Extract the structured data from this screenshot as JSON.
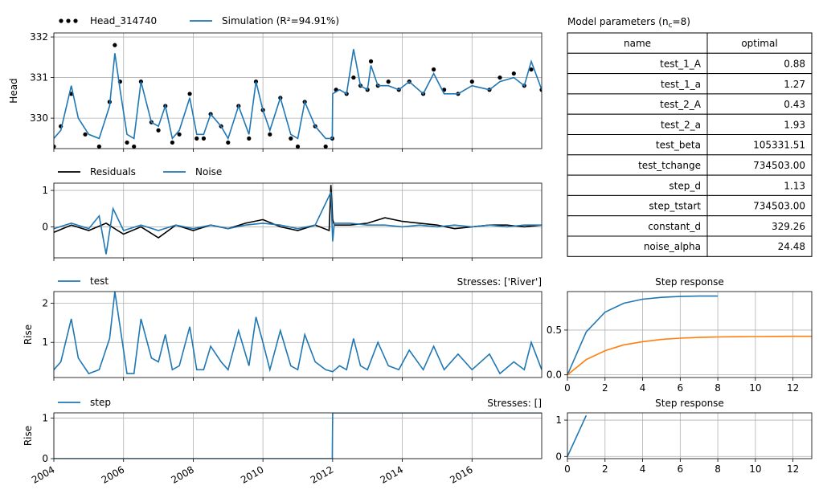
{
  "colors": {
    "blue": "#1f77b4",
    "orange": "#ff7f0e",
    "black": "#000000",
    "grid": "#b0b0b0"
  },
  "x_ticks": [
    "2004",
    "2006",
    "2008",
    "2010",
    "2012",
    "2014",
    "2016"
  ],
  "chart_data": [
    {
      "id": "fit",
      "type": "line",
      "ylabel": "Head",
      "xlim": [
        2004.0,
        2018.0
      ],
      "ylim": [
        329.25,
        332.1
      ],
      "yticks": [
        330,
        331,
        332
      ],
      "grid": true,
      "legend": [
        "Head_314740",
        "Simulation (R²=94.91%)"
      ],
      "legend_placement": "above, left",
      "series": [
        {
          "name": "Head_314740",
          "style": "dots",
          "color": "#000000",
          "x": [
            2004.0,
            2004.2,
            2004.5,
            2004.9,
            2005.3,
            2005.6,
            2005.75,
            2005.9,
            2006.1,
            2006.3,
            2006.5,
            2006.8,
            2007.0,
            2007.2,
            2007.4,
            2007.6,
            2007.9,
            2008.1,
            2008.3,
            2008.5,
            2008.8,
            2009.0,
            2009.3,
            2009.6,
            2009.8,
            2010.0,
            2010.2,
            2010.5,
            2010.8,
            2011.0,
            2011.2,
            2011.5,
            2011.8,
            2011.99,
            2012.1,
            2012.4,
            2012.6,
            2012.8,
            2013.0,
            2013.1,
            2013.3,
            2013.6,
            2013.9,
            2014.2,
            2014.6,
            2014.9,
            2015.2,
            2015.6,
            2016.0,
            2016.5,
            2016.8,
            2017.2,
            2017.5,
            2017.7,
            2018.0
          ],
          "y": [
            329.3,
            329.8,
            330.6,
            329.6,
            329.3,
            330.4,
            331.8,
            330.9,
            329.4,
            329.3,
            330.9,
            329.9,
            329.7,
            330.3,
            329.4,
            329.6,
            330.6,
            329.5,
            329.5,
            330.1,
            329.8,
            329.4,
            330.3,
            329.5,
            330.9,
            330.2,
            329.6,
            330.5,
            329.5,
            329.3,
            330.4,
            329.8,
            329.3,
            329.5,
            330.7,
            330.6,
            331.0,
            330.8,
            330.7,
            331.4,
            330.8,
            330.9,
            330.7,
            330.9,
            330.6,
            331.2,
            330.7,
            330.6,
            330.9,
            330.7,
            331.0,
            331.1,
            330.8,
            331.2,
            330.7
          ]
        },
        {
          "name": "Simulation (R²=94.91%)",
          "style": "line",
          "color": "#1f77b4",
          "x": [
            2004.0,
            2004.2,
            2004.5,
            2004.7,
            2005.0,
            2005.3,
            2005.6,
            2005.75,
            2005.9,
            2006.1,
            2006.3,
            2006.5,
            2006.8,
            2007.0,
            2007.2,
            2007.4,
            2007.6,
            2007.9,
            2008.1,
            2008.3,
            2008.5,
            2008.8,
            2009.0,
            2009.3,
            2009.6,
            2009.8,
            2010.0,
            2010.2,
            2010.5,
            2010.8,
            2011.0,
            2011.2,
            2011.5,
            2011.8,
            2011.99,
            2012.0,
            2012.2,
            2012.4,
            2012.6,
            2012.8,
            2013.0,
            2013.1,
            2013.3,
            2013.6,
            2013.9,
            2014.2,
            2014.6,
            2014.9,
            2015.2,
            2015.6,
            2016.0,
            2016.5,
            2016.8,
            2017.2,
            2017.5,
            2017.7,
            2018.0
          ],
          "y": [
            329.5,
            329.7,
            330.8,
            330.0,
            329.6,
            329.5,
            330.3,
            331.6,
            330.7,
            329.6,
            329.5,
            330.9,
            329.9,
            329.8,
            330.3,
            329.5,
            329.7,
            330.5,
            329.6,
            329.6,
            330.1,
            329.8,
            329.5,
            330.3,
            329.6,
            330.9,
            330.2,
            329.7,
            330.5,
            329.6,
            329.5,
            330.4,
            329.8,
            329.5,
            329.5,
            330.6,
            330.7,
            330.6,
            331.7,
            330.8,
            330.7,
            331.3,
            330.8,
            330.8,
            330.7,
            330.9,
            330.6,
            331.1,
            330.6,
            330.6,
            330.8,
            330.7,
            330.9,
            331.0,
            330.8,
            331.4,
            330.7
          ]
        }
      ]
    },
    {
      "id": "residuals",
      "type": "line",
      "xlim": [
        2004.0,
        2018.0
      ],
      "ylim": [
        -0.85,
        1.2
      ],
      "yticks": [
        0,
        1
      ],
      "grid": true,
      "legend": [
        "Residuals",
        "Noise"
      ],
      "legend_placement": "above, left",
      "series": [
        {
          "name": "Residuals",
          "color": "#000000",
          "x": [
            2004.0,
            2004.5,
            2005.0,
            2005.5,
            2006.0,
            2006.5,
            2007.0,
            2007.5,
            2008.0,
            2008.5,
            2009.0,
            2009.5,
            2010.0,
            2010.5,
            2011.0,
            2011.5,
            2011.9,
            2011.95,
            2012.0,
            2012.05,
            2012.5,
            2013.0,
            2013.5,
            2014.0,
            2014.5,
            2015.0,
            2015.5,
            2016.0,
            2016.5,
            2017.0,
            2017.5,
            2018.0
          ],
          "y": [
            -0.15,
            0.05,
            -0.1,
            0.1,
            -0.2,
            0.0,
            -0.3,
            0.05,
            -0.1,
            0.05,
            -0.05,
            0.1,
            0.2,
            0.0,
            -0.1,
            0.05,
            -0.1,
            1.15,
            0.2,
            0.05,
            0.05,
            0.1,
            0.25,
            0.15,
            0.1,
            0.05,
            -0.05,
            0.0,
            0.05,
            0.05,
            0.0,
            0.05
          ]
        },
        {
          "name": "Noise",
          "color": "#1f77b4",
          "x": [
            2004.0,
            2004.5,
            2005.0,
            2005.3,
            2005.5,
            2005.7,
            2006.0,
            2006.5,
            2007.0,
            2007.5,
            2008.0,
            2008.5,
            2009.0,
            2009.5,
            2010.0,
            2010.5,
            2011.0,
            2011.5,
            2011.95,
            2012.0,
            2012.05,
            2012.5,
            2013.0,
            2013.5,
            2014.0,
            2014.5,
            2015.0,
            2015.5,
            2016.0,
            2016.5,
            2017.0,
            2017.5,
            2018.0
          ],
          "y": [
            -0.05,
            0.1,
            -0.05,
            0.3,
            -0.75,
            0.5,
            -0.1,
            0.05,
            -0.1,
            0.05,
            -0.05,
            0.05,
            -0.05,
            0.05,
            0.1,
            0.05,
            -0.05,
            0.05,
            0.95,
            -0.4,
            0.1,
            0.1,
            0.05,
            0.05,
            0.0,
            0.05,
            0.0,
            0.05,
            0.0,
            0.05,
            0.0,
            0.05,
            0.05
          ]
        }
      ]
    },
    {
      "id": "contrib-test",
      "type": "line",
      "ylabel": "Rise",
      "xlim": [
        2004.0,
        2018.0
      ],
      "ylim": [
        0.1,
        2.3
      ],
      "yticks": [
        1,
        2
      ],
      "grid": true,
      "legend": [
        "test"
      ],
      "legend_placement": "above, left",
      "annotation": "Stresses: ['River']",
      "series": [
        {
          "name": "test",
          "color": "#1f77b4",
          "x": [
            2004.0,
            2004.2,
            2004.5,
            2004.7,
            2005.0,
            2005.3,
            2005.6,
            2005.75,
            2005.9,
            2006.1,
            2006.3,
            2006.5,
            2006.8,
            2007.0,
            2007.2,
            2007.4,
            2007.6,
            2007.9,
            2008.1,
            2008.3,
            2008.5,
            2008.8,
            2009.0,
            2009.3,
            2009.6,
            2009.8,
            2010.0,
            2010.2,
            2010.5,
            2010.8,
            2011.0,
            2011.2,
            2011.5,
            2011.8,
            2012.0,
            2012.2,
            2012.4,
            2012.6,
            2012.8,
            2013.0,
            2013.3,
            2013.6,
            2013.9,
            2014.2,
            2014.6,
            2014.9,
            2015.2,
            2015.6,
            2016.0,
            2016.5,
            2016.8,
            2017.2,
            2017.5,
            2017.7,
            2018.0
          ],
          "y": [
            0.3,
            0.5,
            1.6,
            0.6,
            0.2,
            0.3,
            1.1,
            2.3,
            1.4,
            0.2,
            0.2,
            1.6,
            0.6,
            0.5,
            1.2,
            0.3,
            0.4,
            1.4,
            0.3,
            0.3,
            0.9,
            0.5,
            0.3,
            1.3,
            0.4,
            1.65,
            1.0,
            0.3,
            1.3,
            0.4,
            0.3,
            1.2,
            0.5,
            0.3,
            0.25,
            0.4,
            0.3,
            1.1,
            0.4,
            0.3,
            1.0,
            0.4,
            0.3,
            0.8,
            0.3,
            0.9,
            0.3,
            0.7,
            0.3,
            0.7,
            0.2,
            0.5,
            0.3,
            1.0,
            0.3
          ]
        }
      ]
    },
    {
      "id": "contrib-step",
      "type": "line",
      "ylabel": "Rise",
      "xlim": [
        2004.0,
        2018.0
      ],
      "ylim": [
        0,
        1.13
      ],
      "yticks": [
        0,
        1
      ],
      "grid": true,
      "legend": [
        "step"
      ],
      "legend_placement": "above, left",
      "annotation": "Stresses: []",
      "series": [
        {
          "name": "step",
          "color": "#1f77b4",
          "x": [
            2004.0,
            2011.99,
            2012.0,
            2018.0
          ],
          "y": [
            0.0,
            0.0,
            1.13,
            1.13
          ]
        }
      ]
    },
    {
      "id": "step-response-test",
      "type": "line",
      "title": "Step response",
      "xlim": [
        0,
        13
      ],
      "ylim": [
        -0.03,
        0.93
      ],
      "xticks": [
        0,
        2,
        4,
        6,
        8,
        10,
        12
      ],
      "yticks": [
        0.0,
        0.5
      ],
      "grid": true,
      "series": [
        {
          "color": "#1f77b4",
          "x": [
            0,
            1,
            2,
            3,
            4,
            5,
            6,
            7,
            8
          ],
          "y": [
            0,
            0.48,
            0.7,
            0.8,
            0.845,
            0.865,
            0.875,
            0.88,
            0.88
          ]
        },
        {
          "color": "#ff7f0e",
          "x": [
            0,
            1,
            2,
            3,
            4,
            5,
            6,
            7,
            8,
            9,
            10,
            11,
            12,
            13
          ],
          "y": [
            0,
            0.17,
            0.27,
            0.335,
            0.37,
            0.395,
            0.41,
            0.418,
            0.423,
            0.426,
            0.428,
            0.429,
            0.43,
            0.43
          ]
        }
      ]
    },
    {
      "id": "step-response-step",
      "type": "line",
      "title": "Step response",
      "xlim": [
        0,
        13
      ],
      "ylim": [
        -0.06,
        1.2
      ],
      "xticks": [
        0,
        2,
        4,
        6,
        8,
        10,
        12
      ],
      "yticks": [
        0,
        1
      ],
      "grid": true,
      "series": [
        {
          "color": "#1f77b4",
          "x": [
            0,
            1
          ],
          "y": [
            0,
            1.13
          ]
        }
      ]
    }
  ],
  "parameters": {
    "title": "Model parameters (n",
    "title_sub": "c",
    "title_tail": "=8)",
    "headers": [
      "name",
      "optimal"
    ],
    "rows": [
      [
        "test_1_A",
        "0.88"
      ],
      [
        "test_1_a",
        "1.27"
      ],
      [
        "test_2_A",
        "0.43"
      ],
      [
        "test_2_a",
        "1.93"
      ],
      [
        "test_beta",
        "105331.51"
      ],
      [
        "test_tchange",
        "734503.00"
      ],
      [
        "step_d",
        "1.13"
      ],
      [
        "step_tstart",
        "734503.00"
      ],
      [
        "constant_d",
        "329.26"
      ],
      [
        "noise_alpha",
        "24.48"
      ]
    ]
  }
}
